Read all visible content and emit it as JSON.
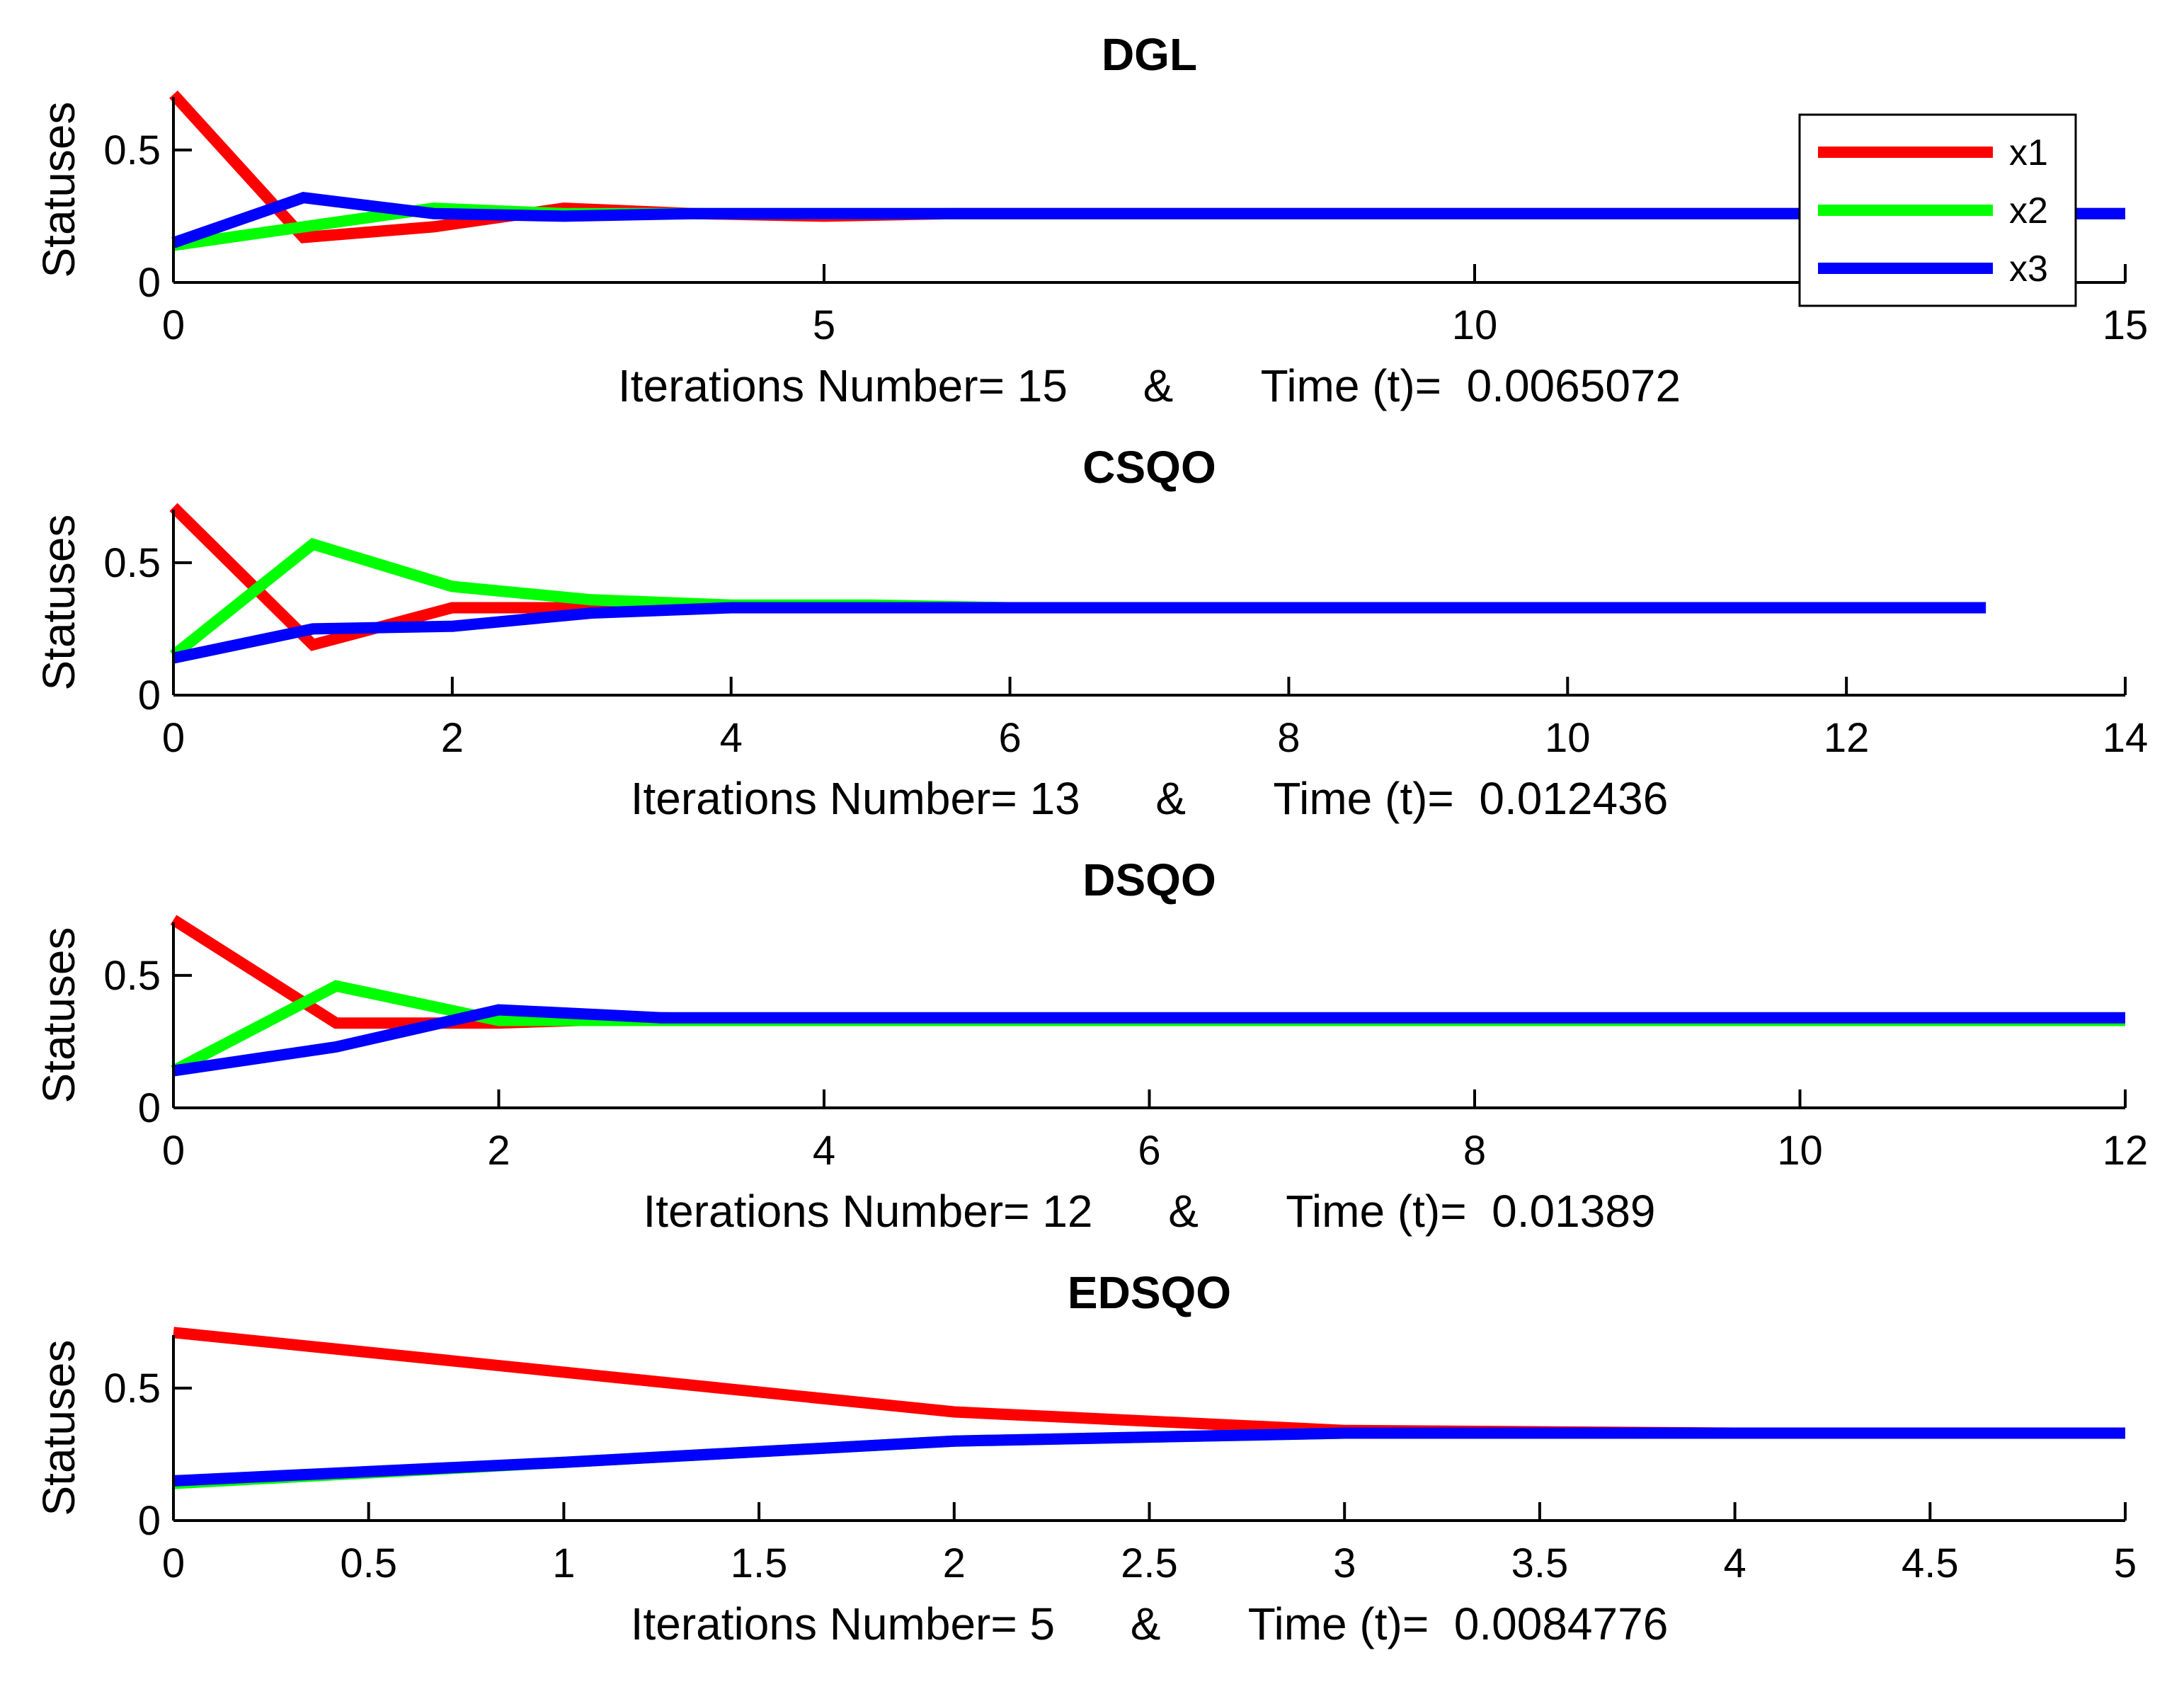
{
  "colors": {
    "x1": "#ff0000",
    "x2": "#00ff00",
    "x3": "#0000ff"
  },
  "legend": {
    "placement": "top-right",
    "entries": [
      "x1",
      "x2",
      "x3"
    ]
  },
  "chart_data": [
    {
      "type": "line",
      "title": "DGL",
      "ylabel": "Statuses",
      "xlabel": "Iterations Number= 15      &       Time (t)=  0.0065072",
      "xlim": [
        0,
        15
      ],
      "ylim": [
        0,
        0.7
      ],
      "xticks": [
        0,
        5,
        10,
        15
      ],
      "xtick_labels": [
        "0",
        "5",
        "10",
        "15"
      ],
      "yticks": [
        0,
        0.5
      ],
      "ytick_labels": [
        "0",
        "0.5"
      ],
      "x": [
        0,
        1,
        2,
        3,
        4,
        5,
        6,
        7,
        8,
        9,
        10,
        11,
        12,
        13,
        14,
        15
      ],
      "series": [
        {
          "name": "x1",
          "values": [
            0.71,
            0.17,
            0.21,
            0.28,
            0.26,
            0.25,
            0.26,
            0.26,
            0.26,
            0.26,
            0.26,
            0.26,
            0.26,
            0.26,
            0.26,
            0.26
          ]
        },
        {
          "name": "x2",
          "values": [
            0.14,
            0.21,
            0.28,
            0.26,
            0.26,
            0.26,
            0.26,
            0.26,
            0.26,
            0.26,
            0.26,
            0.26,
            0.26,
            0.26,
            0.26,
            0.26
          ]
        },
        {
          "name": "x3",
          "values": [
            0.15,
            0.32,
            0.26,
            0.25,
            0.26,
            0.26,
            0.26,
            0.26,
            0.26,
            0.26,
            0.26,
            0.26,
            0.26,
            0.26,
            0.26,
            0.26
          ]
        }
      ]
    },
    {
      "type": "line",
      "title": "CSQO",
      "ylabel": "Statuses",
      "xlabel": "Iterations Number= 13      &       Time (t)=  0.012436",
      "xlim": [
        0,
        14
      ],
      "ylim": [
        0,
        0.7
      ],
      "xticks": [
        0,
        2,
        4,
        6,
        8,
        10,
        12,
        14
      ],
      "xtick_labels": [
        "0",
        "2",
        "4",
        "6",
        "8",
        "10",
        "12",
        "14"
      ],
      "yticks": [
        0,
        0.5
      ],
      "ytick_labels": [
        "0",
        "0.5"
      ],
      "x": [
        0,
        1,
        2,
        3,
        4,
        5,
        6,
        7,
        8,
        9,
        10,
        11,
        12,
        13
      ],
      "series": [
        {
          "name": "x1",
          "values": [
            0.71,
            0.19,
            0.33,
            0.33,
            0.33,
            0.33,
            0.33,
            0.33,
            0.33,
            0.33,
            0.33,
            0.33,
            0.33,
            0.33
          ]
        },
        {
          "name": "x2",
          "values": [
            0.15,
            0.57,
            0.41,
            0.36,
            0.34,
            0.34,
            0.33,
            0.33,
            0.33,
            0.33,
            0.33,
            0.33,
            0.33,
            0.33
          ]
        },
        {
          "name": "x3",
          "values": [
            0.14,
            0.25,
            0.26,
            0.31,
            0.33,
            0.33,
            0.33,
            0.33,
            0.33,
            0.33,
            0.33,
            0.33,
            0.33,
            0.33
          ]
        }
      ]
    },
    {
      "type": "line",
      "title": "DSQO",
      "ylabel": "Statuses",
      "xlabel": "Iterations Number= 12      &       Time (t)=  0.01389",
      "xlim": [
        0,
        12
      ],
      "ylim": [
        0,
        0.7
      ],
      "xticks": [
        0,
        2,
        4,
        6,
        8,
        10,
        12
      ],
      "xtick_labels": [
        "0",
        "2",
        "4",
        "6",
        "8",
        "10",
        "12"
      ],
      "yticks": [
        0,
        0.5
      ],
      "ytick_labels": [
        "0",
        "0.5"
      ],
      "x": [
        0,
        1,
        2,
        3,
        4,
        5,
        6,
        7,
        8,
        9,
        10,
        11,
        12
      ],
      "series": [
        {
          "name": "x1",
          "values": [
            0.71,
            0.32,
            0.32,
            0.34,
            0.33,
            0.33,
            0.33,
            0.33,
            0.33,
            0.33,
            0.33,
            0.33,
            0.33
          ]
        },
        {
          "name": "x2",
          "values": [
            0.14,
            0.46,
            0.33,
            0.33,
            0.33,
            0.33,
            0.33,
            0.33,
            0.33,
            0.33,
            0.33,
            0.33,
            0.33
          ]
        },
        {
          "name": "x3",
          "values": [
            0.14,
            0.23,
            0.37,
            0.34,
            0.34,
            0.34,
            0.34,
            0.34,
            0.34,
            0.34,
            0.34,
            0.34,
            0.34
          ]
        }
      ]
    },
    {
      "type": "line",
      "title": "EDSQO",
      "ylabel": "Statuses",
      "xlabel": "Iterations Number= 5      &       Time (t)=  0.0084776",
      "xlim": [
        0,
        5
      ],
      "ylim": [
        0,
        0.7
      ],
      "xticks": [
        0,
        0.5,
        1,
        1.5,
        2,
        2.5,
        3,
        3.5,
        4,
        4.5,
        5
      ],
      "xtick_labels": [
        "0",
        "0.5",
        "1",
        "1.5",
        "2",
        "2.5",
        "3",
        "3.5",
        "4",
        "4.5",
        "5"
      ],
      "yticks": [
        0,
        0.5
      ],
      "ytick_labels": [
        "0",
        "0.5"
      ],
      "x": [
        0,
        1,
        2,
        3,
        4,
        5
      ],
      "series": [
        {
          "name": "x1",
          "values": [
            0.71,
            0.56,
            0.41,
            0.34,
            0.33,
            0.33
          ]
        },
        {
          "name": "x2",
          "values": [
            0.14,
            0.22,
            0.3,
            0.33,
            0.33,
            0.33
          ]
        },
        {
          "name": "x3",
          "values": [
            0.15,
            0.22,
            0.3,
            0.33,
            0.33,
            0.33
          ]
        }
      ]
    }
  ]
}
